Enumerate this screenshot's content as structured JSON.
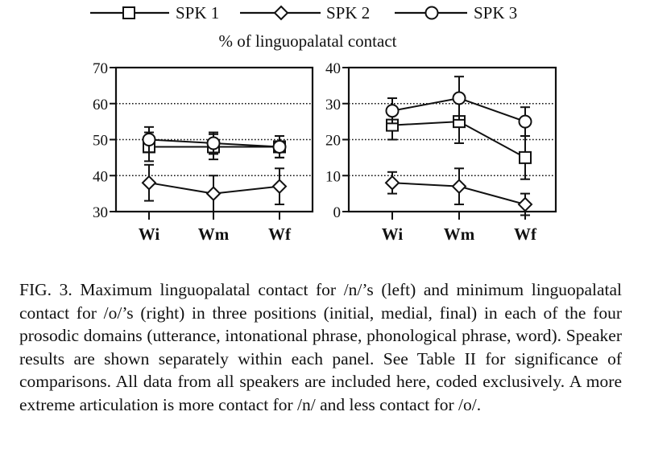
{
  "legend": [
    {
      "name": "SPK 1",
      "marker": "square"
    },
    {
      "name": "SPK 2",
      "marker": "diamond"
    },
    {
      "name": "SPK 3",
      "marker": "circle"
    }
  ],
  "chart_title": "% of linguopalatal contact",
  "caption": "FIG. 3. Maximum linguopalatal contact for /n/’s (left) and minimum linguopalatal contact for /o/’s (right) in three positions (initial, medial, final) in each of the four prosodic domains (utterance, intonational phrase, phonological phrase, word). Speaker results are shown separately within each panel. See Table II for significance of comparisons. All data from all speakers are included here, coded exclusively. A more extreme articulation is more contact for /n/ and less contact for /o/.",
  "colors": {
    "ink": "#111111",
    "background": "#ffffff"
  },
  "chart_data": [
    {
      "type": "line",
      "panel": "left",
      "categories": [
        "Wi",
        "Wm",
        "Wf"
      ],
      "ylim": [
        30,
        70
      ],
      "yticks": [
        "30",
        "40",
        "50",
        "60",
        "70"
      ],
      "ytick_values": [
        30,
        40,
        50,
        60,
        70
      ],
      "grid": "dotted horizontal",
      "error_bars": true,
      "series": [
        {
          "name": "SPK 1",
          "marker": "square",
          "values": [
            48,
            48,
            48
          ],
          "errors": [
            4,
            3.5,
            3
          ]
        },
        {
          "name": "SPK 2",
          "marker": "diamond",
          "values": [
            38,
            35,
            37
          ],
          "errors": [
            5,
            5,
            5
          ]
        },
        {
          "name": "SPK 3",
          "marker": "circle",
          "values": [
            50,
            49,
            48
          ],
          "errors": [
            3.5,
            3,
            3
          ]
        }
      ]
    },
    {
      "type": "line",
      "panel": "right",
      "categories": [
        "Wi",
        "Wm",
        "Wf"
      ],
      "ylim": [
        0,
        40
      ],
      "yticks": [
        "0",
        "10",
        "20",
        "30",
        "40"
      ],
      "ytick_values": [
        0,
        10,
        20,
        30,
        40
      ],
      "grid": "dotted horizontal",
      "error_bars": true,
      "series": [
        {
          "name": "SPK 1",
          "marker": "square",
          "values": [
            24,
            25,
            15
          ],
          "errors": [
            4,
            6,
            6
          ]
        },
        {
          "name": "SPK 2",
          "marker": "diamond",
          "values": [
            8,
            7,
            2
          ],
          "errors": [
            3,
            5,
            3
          ]
        },
        {
          "name": "SPK 3",
          "marker": "circle",
          "values": [
            28,
            31.5,
            25
          ],
          "errors": [
            3.5,
            6,
            4
          ]
        }
      ]
    }
  ]
}
